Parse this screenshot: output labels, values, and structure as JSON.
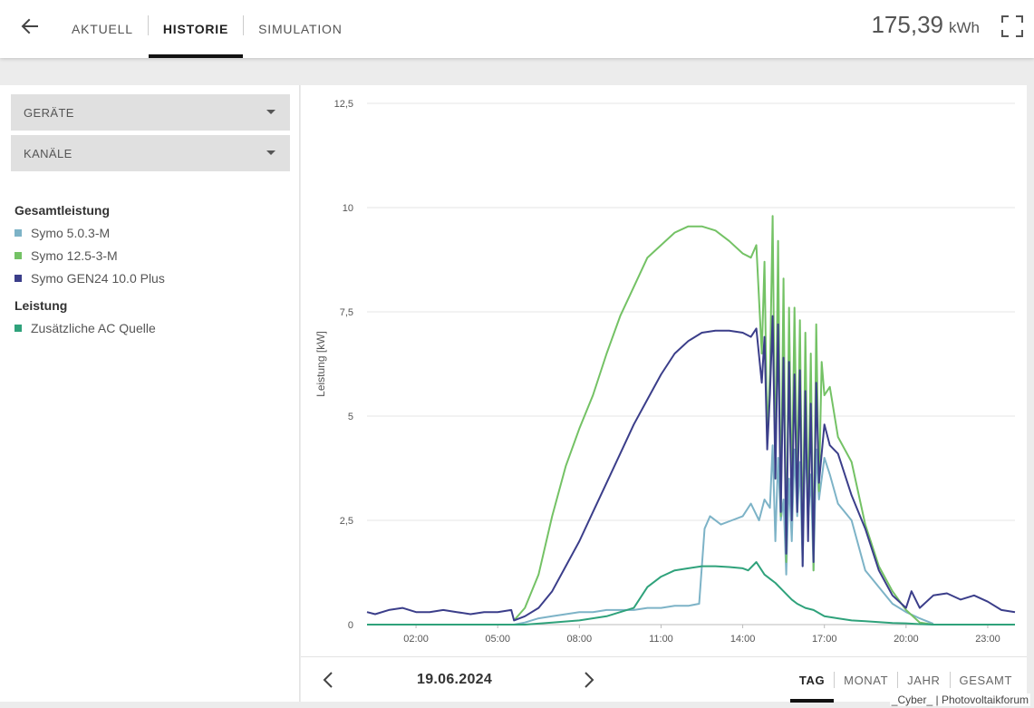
{
  "header": {
    "tabs": [
      {
        "label": "AKTUELL"
      },
      {
        "label": "HISTORIE"
      },
      {
        "label": "SIMULATION"
      }
    ],
    "total_value": "175,39",
    "total_unit": "kWh"
  },
  "sidebar": {
    "dropdowns": [
      {
        "label": "GERÄTE"
      },
      {
        "label": "KANÄLE"
      }
    ],
    "groups": [
      {
        "title": "Gesamtleistung",
        "items": [
          {
            "label": "Symo 5.0.3-M",
            "color": "#7db3c7"
          },
          {
            "label": "Symo 12.5-3-M",
            "color": "#74c265"
          },
          {
            "label": "Symo GEN24 10.0 Plus",
            "color": "#3b3e8a"
          }
        ]
      },
      {
        "title": "Leistung",
        "items": [
          {
            "label": "Zusätzliche AC Quelle",
            "color": "#2fa27b"
          }
        ]
      }
    ]
  },
  "footer": {
    "date": "19.06.2024",
    "periods": [
      {
        "label": "TAG"
      },
      {
        "label": "MONAT"
      },
      {
        "label": "JAHR"
      },
      {
        "label": "GESAMT"
      }
    ]
  },
  "watermark": "_Cyber_ | Photovoltaikforum",
  "chart_data": {
    "type": "line",
    "ylabel": "Leistung [kW]",
    "xlabel": "",
    "ylim": [
      0,
      12.5
    ],
    "xlim": [
      0.2,
      24
    ],
    "yticks": [
      "0",
      "2,5",
      "5",
      "7,5",
      "10",
      "12,5"
    ],
    "xticks": [
      "02:00",
      "05:00",
      "08:00",
      "11:00",
      "14:00",
      "17:00",
      "20:00",
      "23:00"
    ],
    "grid": "horizontal",
    "series": [
      {
        "name": "Symo 5.0.3-M",
        "color": "#7db3c7",
        "x": [
          5.6,
          6,
          6.5,
          7,
          7.5,
          8,
          8.5,
          9,
          9.5,
          10,
          10.5,
          11,
          11.5,
          12,
          12.4,
          12.6,
          12.8,
          13.2,
          13.6,
          14,
          14.3,
          14.6,
          14.8,
          15,
          15.1,
          15.2,
          15.3,
          15.4,
          15.5,
          15.6,
          15.7,
          15.8,
          15.9,
          16,
          16.1,
          16.2,
          16.3,
          16.4,
          16.5,
          16.6,
          16.7,
          16.8,
          17,
          17.2,
          17.5,
          18,
          18.5,
          19,
          19.5,
          20,
          20.5,
          21
        ],
        "y": [
          0,
          0.05,
          0.15,
          0.2,
          0.25,
          0.3,
          0.3,
          0.35,
          0.35,
          0.35,
          0.4,
          0.4,
          0.45,
          0.45,
          0.5,
          2.3,
          2.6,
          2.4,
          2.5,
          2.6,
          2.9,
          2.5,
          3,
          2.8,
          4.3,
          2.0,
          4.0,
          2.5,
          3.0,
          1.2,
          3.5,
          2.0,
          4.2,
          2.6,
          3.9,
          1.4,
          4.6,
          2.5,
          3.6,
          1.3,
          4.2,
          3.0,
          4.0,
          3.6,
          2.9,
          2.5,
          1.3,
          0.9,
          0.5,
          0.3,
          0.15,
          0.02
        ]
      },
      {
        "name": "Symo 12.5-3-M",
        "color": "#74c265",
        "x": [
          5.6,
          6,
          6.5,
          7,
          7.5,
          8,
          8.5,
          9,
          9.5,
          10,
          10.5,
          11,
          11.5,
          12,
          12.5,
          13,
          13.5,
          14,
          14.3,
          14.5,
          14.7,
          14.8,
          14.9,
          15,
          15.1,
          15.2,
          15.3,
          15.4,
          15.5,
          15.6,
          15.7,
          15.8,
          15.9,
          16,
          16.1,
          16.2,
          16.3,
          16.4,
          16.5,
          16.6,
          16.7,
          16.8,
          16.9,
          17,
          17.2,
          17.5,
          18,
          18.5,
          19,
          19.5,
          20,
          20.5,
          21
        ],
        "y": [
          0.1,
          0.4,
          1.2,
          2.6,
          3.8,
          4.7,
          5.5,
          6.5,
          7.4,
          8.1,
          8.8,
          9.1,
          9.4,
          9.55,
          9.55,
          9.45,
          9.2,
          8.9,
          8.8,
          9.1,
          6.5,
          8.7,
          4.5,
          6.0,
          9.8,
          3.5,
          9.2,
          2.6,
          8.3,
          1.5,
          7.6,
          3.0,
          7.6,
          3.2,
          7.3,
          1.7,
          7.0,
          2.5,
          6.5,
          1.3,
          7.2,
          3.2,
          6.3,
          5.5,
          5.7,
          4.5,
          3.9,
          2.4,
          1.4,
          0.8,
          0.35,
          0.05,
          0
        ]
      },
      {
        "name": "Symo GEN24 10.0 Plus",
        "color": "#3b3e8a",
        "x": [
          0.2,
          0.5,
          1,
          1.5,
          2,
          2.5,
          3,
          3.5,
          4,
          4.5,
          5,
          5.5,
          5.6,
          6,
          6.5,
          7,
          7.5,
          8,
          8.5,
          9,
          9.5,
          10,
          10.5,
          11,
          11.5,
          12,
          12.5,
          13,
          13.5,
          14,
          14.3,
          14.5,
          14.7,
          14.8,
          14.9,
          15,
          15.1,
          15.2,
          15.3,
          15.4,
          15.5,
          15.6,
          15.7,
          15.8,
          15.9,
          16,
          16.1,
          16.2,
          16.3,
          16.4,
          16.5,
          16.6,
          16.7,
          16.8,
          17,
          17.2,
          17.5,
          18,
          18.5,
          19,
          19.5,
          20,
          20.2,
          20.5,
          21,
          21.5,
          22,
          22.5,
          23,
          23.5,
          24
        ],
        "y": [
          0.3,
          0.25,
          0.35,
          0.4,
          0.3,
          0.3,
          0.35,
          0.3,
          0.25,
          0.3,
          0.3,
          0.35,
          0.1,
          0.2,
          0.4,
          0.8,
          1.4,
          2.0,
          2.7,
          3.4,
          4.1,
          4.8,
          5.4,
          6.0,
          6.5,
          6.8,
          7.0,
          7.05,
          7.05,
          7.0,
          6.9,
          7.1,
          5.8,
          6.9,
          4.2,
          5.5,
          7.4,
          3.5,
          7.2,
          2.7,
          6.4,
          1.7,
          6.3,
          2.5,
          6.0,
          2.7,
          6.1,
          1.4,
          5.6,
          2.0,
          5.3,
          1.5,
          5.8,
          3.4,
          4.8,
          4.3,
          4.1,
          3.1,
          2.3,
          1.3,
          0.7,
          0.4,
          0.8,
          0.4,
          0.7,
          0.75,
          0.6,
          0.7,
          0.55,
          0.35,
          0.3
        ]
      },
      {
        "name": "Zusätzliche AC Quelle",
        "color": "#2fa27b",
        "x": [
          0.2,
          5.5,
          6,
          7,
          8,
          9,
          9.5,
          10,
          10.5,
          11,
          11.5,
          12,
          12.5,
          13,
          13.5,
          14,
          14.2,
          14.5,
          14.8,
          15,
          15.2,
          15.5,
          15.8,
          16,
          16.3,
          16.6,
          17,
          17.5,
          18,
          18.5,
          19,
          19.5,
          20,
          20.5,
          21,
          24
        ],
        "y": [
          0,
          0,
          0,
          0.05,
          0.1,
          0.2,
          0.3,
          0.4,
          0.9,
          1.15,
          1.3,
          1.35,
          1.4,
          1.4,
          1.38,
          1.35,
          1.3,
          1.5,
          1.2,
          1.1,
          1.0,
          0.8,
          0.6,
          0.5,
          0.4,
          0.35,
          0.2,
          0.15,
          0.1,
          0.08,
          0.06,
          0.04,
          0.03,
          0.01,
          0,
          0
        ]
      }
    ]
  }
}
